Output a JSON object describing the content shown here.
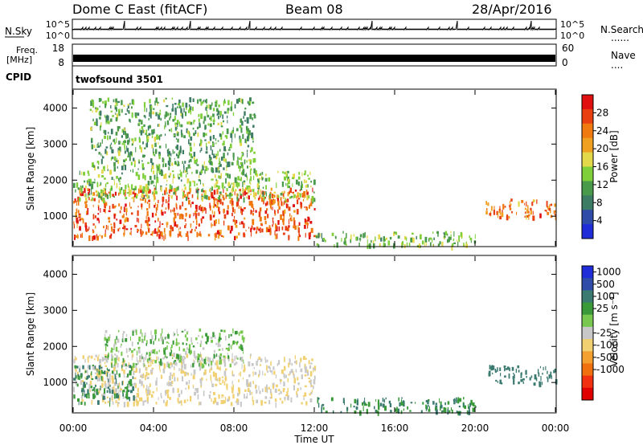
{
  "header": {
    "title": "Dome C East (fitACF)",
    "beam": "Beam 08",
    "date": "28/Apr/2016"
  },
  "panels": {
    "nsky": {
      "label": "N.Sky",
      "left_top": "10^5",
      "left_bottom": "10^0",
      "right_top": "10^5",
      "right_bottom": "10^0",
      "right_label": "N.Search"
    },
    "freq": {
      "label_top": "Freq.",
      "label_bottom": "[MHz]",
      "left_top": "18",
      "left_bottom": "8",
      "right_top": "60",
      "right_bottom": "0",
      "right_label": "Nave"
    },
    "cpid": {
      "label": "CPID",
      "value": "twofsound 3501"
    }
  },
  "colors": {
    "power_scale": [
      "#1e2dd8",
      "#2f4ca8",
      "#3d7c64",
      "#4a9a4c",
      "#7fcf3a",
      "#e3d84a",
      "#f0a020",
      "#f07a10",
      "#e84010",
      "#e01010"
    ],
    "velocity_scale": [
      "#e00000",
      "#f03010",
      "#f07010",
      "#f4a030",
      "#f0d070",
      "#c8c8c8",
      "#78c850",
      "#3a9a3a",
      "#3a7a70",
      "#2f4ca8",
      "#1e2dd8"
    ]
  },
  "chart_data": [
    {
      "type": "heatmap",
      "name": "power",
      "ylabel": "Slant Range [km]",
      "xlabel": "Time UT",
      "x_ticks": [
        "00:00",
        "04:00",
        "08:00",
        "12:00",
        "16:00",
        "20:00",
        "00:00"
      ],
      "y_ticks": [
        1000,
        2000,
        3000,
        4000
      ],
      "xlim_hours": [
        0,
        24
      ],
      "ylim_km": [
        180,
        4500
      ],
      "colorbar": {
        "label": "Power [dB]",
        "ticks": [
          4,
          8,
          12,
          16,
          20,
          24,
          28
        ],
        "range": [
          0,
          32
        ]
      },
      "regions": [
        {
          "t_start": 0.0,
          "t_end": 12.0,
          "r_low": 450,
          "r_high": 1800,
          "level": 26
        },
        {
          "t_start": 0.0,
          "t_end": 12.0,
          "r_low": 1500,
          "r_high": 2300,
          "level": 14
        },
        {
          "t_start": 0.8,
          "t_end": 9.0,
          "r_low": 2300,
          "r_high": 4300,
          "level": 12
        },
        {
          "t_start": 12.0,
          "t_end": 20.0,
          "r_low": 200,
          "r_high": 600,
          "level": 14
        },
        {
          "t_start": 20.5,
          "t_end": 24.0,
          "r_low": 1000,
          "r_high": 1500,
          "level": 24
        }
      ]
    },
    {
      "type": "heatmap",
      "name": "velocity",
      "ylabel": "Slant Range [km]",
      "xlabel": "Time UT",
      "x_ticks": [
        "00:00",
        "04:00",
        "08:00",
        "12:00",
        "16:00",
        "20:00",
        "00:00"
      ],
      "y_ticks": [
        1000,
        2000,
        3000,
        4000
      ],
      "xlim_hours": [
        0,
        24
      ],
      "ylim_km": [
        180,
        4500
      ],
      "colorbar": {
        "label": "Velocity [m s⁻¹]",
        "ticks": [
          1000,
          500,
          100,
          25,
          -25,
          -100,
          -500,
          -1000
        ]
      },
      "regions": [
        {
          "t_start": 0.0,
          "t_end": 12.0,
          "r_low": 450,
          "r_high": 1800,
          "level": -100
        },
        {
          "t_start": 0.0,
          "t_end": 3.0,
          "r_low": 450,
          "r_high": 1500,
          "level": 100
        },
        {
          "t_start": 1.5,
          "t_end": 8.5,
          "r_low": 1500,
          "r_high": 2500,
          "level": 0
        },
        {
          "t_start": 12.0,
          "t_end": 20.0,
          "r_low": 200,
          "r_high": 600,
          "level": 100
        },
        {
          "t_start": 20.5,
          "t_end": 24.0,
          "r_low": 1000,
          "r_high": 1500,
          "level": 200
        }
      ]
    }
  ]
}
